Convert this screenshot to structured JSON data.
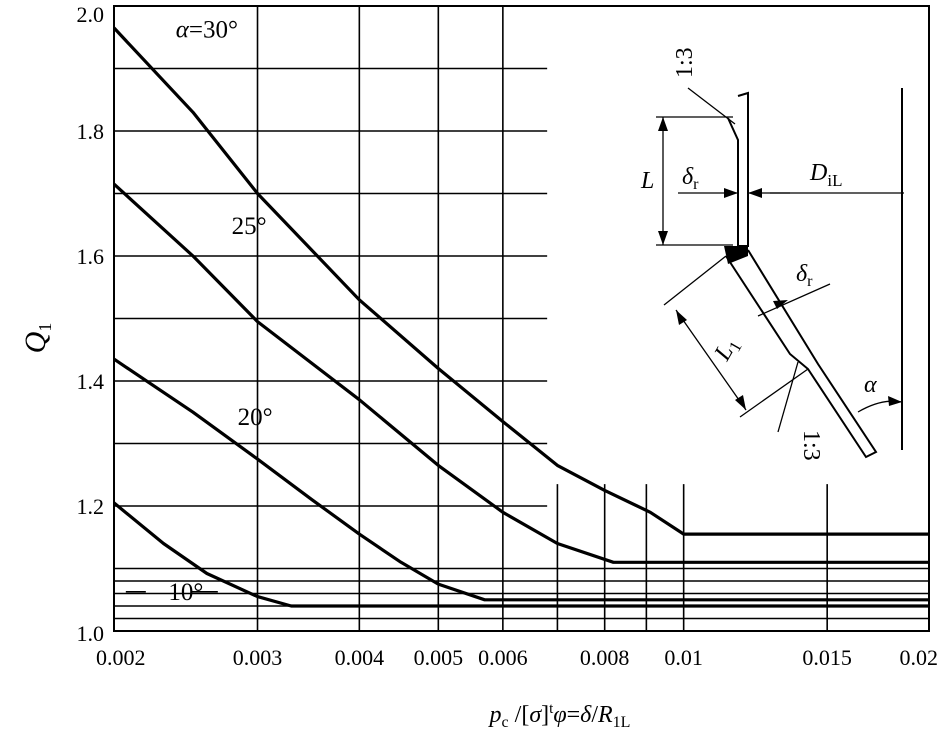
{
  "chart_data": {
    "type": "line",
    "ylabel": "Q",
    "ylabel_sub": "1",
    "xlabel_parts": [
      "p",
      "c",
      " /[",
      "σ",
      "]",
      "t",
      "φ",
      "=",
      "δ",
      "/",
      "R",
      "1L"
    ],
    "x_ticks": [
      {
        "value": 0.002,
        "label": "0.002"
      },
      {
        "value": 0.003,
        "label": "0.003"
      },
      {
        "value": 0.004,
        "label": "0.004"
      },
      {
        "value": 0.005,
        "label": "0.005"
      },
      {
        "value": 0.006,
        "label": "0.006"
      },
      {
        "value": 0.008,
        "label": "0.008"
      },
      {
        "value": 0.01,
        "label": "0.01"
      },
      {
        "value": 0.015,
        "label": "0.015"
      },
      {
        "value": 0.02,
        "label": "0.02"
      }
    ],
    "y_ticks": [
      {
        "value": 1.0,
        "label": "1.0"
      },
      {
        "value": 1.2,
        "label": "1.2"
      },
      {
        "value": 1.4,
        "label": "1.4"
      },
      {
        "value": 1.6,
        "label": "1.6"
      },
      {
        "value": 1.8,
        "label": "1.8"
      },
      {
        "value": 2.0,
        "label": "2.0"
      }
    ],
    "ylim": [
      1.0,
      2.0
    ],
    "xlim": [
      0.002,
      0.02
    ],
    "grid": true,
    "series": [
      {
        "name": "10°",
        "points": [
          [
            0.002,
            1.205
          ],
          [
            0.0023,
            1.14
          ],
          [
            0.0026,
            1.092
          ],
          [
            0.003,
            1.055
          ],
          [
            0.0033,
            1.04
          ],
          [
            0.004,
            1.04
          ],
          [
            0.006,
            1.04
          ],
          [
            0.01,
            1.04
          ],
          [
            0.015,
            1.04
          ],
          [
            0.02,
            1.04
          ]
        ]
      },
      {
        "name": "20°",
        "points": [
          [
            0.002,
            1.435
          ],
          [
            0.0025,
            1.35
          ],
          [
            0.003,
            1.275
          ],
          [
            0.0035,
            1.21
          ],
          [
            0.004,
            1.155
          ],
          [
            0.0045,
            1.11
          ],
          [
            0.005,
            1.075
          ],
          [
            0.0057,
            1.05
          ],
          [
            0.006,
            1.05
          ],
          [
            0.008,
            1.05
          ],
          [
            0.01,
            1.05
          ],
          [
            0.015,
            1.05
          ],
          [
            0.02,
            1.05
          ]
        ]
      },
      {
        "name": "25°",
        "points": [
          [
            0.002,
            1.715
          ],
          [
            0.0025,
            1.6
          ],
          [
            0.003,
            1.495
          ],
          [
            0.004,
            1.37
          ],
          [
            0.005,
            1.265
          ],
          [
            0.006,
            1.19
          ],
          [
            0.007,
            1.14
          ],
          [
            0.0082,
            1.11
          ],
          [
            0.01,
            1.11
          ],
          [
            0.015,
            1.11
          ],
          [
            0.02,
            1.11
          ]
        ]
      },
      {
        "name": "α=30°",
        "points": [
          [
            0.002,
            1.965
          ],
          [
            0.0025,
            1.83
          ],
          [
            0.003,
            1.7
          ],
          [
            0.004,
            1.53
          ],
          [
            0.005,
            1.42
          ],
          [
            0.006,
            1.335
          ],
          [
            0.007,
            1.265
          ],
          [
            0.008,
            1.225
          ],
          [
            0.0091,
            1.19
          ],
          [
            0.01,
            1.155
          ],
          [
            0.015,
            1.155
          ],
          [
            0.02,
            1.155
          ]
        ]
      }
    ],
    "curve_labels": [
      {
        "series": 3,
        "text": "α=30°",
        "at": [
          0.0026,
          1.95
        ]
      },
      {
        "series": 2,
        "text": "25°",
        "at": [
          0.00293,
          1.635
        ]
      },
      {
        "series": 1,
        "text": "20°",
        "at": [
          0.00298,
          1.33
        ]
      },
      {
        "series": 0,
        "text": "10°",
        "at": [
          0.00245,
          1.05
        ]
      }
    ]
  },
  "sketch": {
    "labels": {
      "L": "L",
      "delta_r_1": "δ",
      "delta_r_1_sub": "r",
      "D_iL": "D",
      "D_iL_sub": "iL",
      "delta_r_2": "δ",
      "delta_r_2_sub": "r",
      "L1": "L",
      "L1_sub": "1",
      "alpha": "α",
      "slope_top": "1:3",
      "slope_bottom": "1:3"
    }
  }
}
